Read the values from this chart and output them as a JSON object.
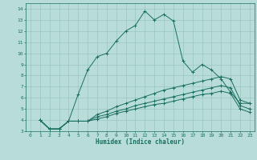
{
  "xlabel": "Humidex (Indice chaleur)",
  "bg_color": "#b8ddd8",
  "grid_color": "#90c0ba",
  "line_color": "#1a6e60",
  "xlim": [
    -0.5,
    23.5
  ],
  "ylim": [
    3,
    14.5
  ],
  "xticks": [
    0,
    1,
    2,
    3,
    4,
    5,
    6,
    7,
    8,
    9,
    10,
    11,
    12,
    13,
    14,
    15,
    16,
    17,
    18,
    19,
    20,
    21,
    22,
    23
  ],
  "yticks": [
    3,
    4,
    5,
    6,
    7,
    8,
    9,
    10,
    11,
    12,
    13,
    14
  ],
  "curves": [
    {
      "x": [
        1,
        2,
        3,
        4,
        5,
        6,
        7,
        8,
        9,
        10,
        11,
        12,
        13,
        14,
        15,
        16,
        17,
        18,
        19,
        20,
        21,
        22,
        23
      ],
      "y": [
        4.0,
        3.2,
        3.2,
        3.9,
        6.3,
        8.5,
        9.7,
        10.0,
        11.1,
        12.0,
        12.5,
        13.8,
        13.0,
        13.5,
        12.9,
        9.3,
        8.3,
        9.0,
        8.5,
        7.7,
        6.5,
        5.5,
        5.5
      ],
      "linestyle": "-"
    },
    {
      "x": [
        1,
        2,
        3,
        4,
        5,
        6,
        7,
        8,
        9,
        10,
        11,
        12,
        13,
        14,
        15,
        16,
        17,
        18,
        19,
        20,
        21,
        22,
        23
      ],
      "y": [
        4.0,
        3.2,
        3.2,
        3.9,
        3.9,
        3.9,
        4.5,
        4.8,
        5.2,
        5.5,
        5.8,
        6.1,
        6.4,
        6.7,
        6.9,
        7.1,
        7.3,
        7.5,
        7.7,
        7.9,
        7.7,
        5.8,
        5.5
      ],
      "linestyle": "-"
    },
    {
      "x": [
        1,
        2,
        3,
        4,
        5,
        6,
        7,
        8,
        9,
        10,
        11,
        12,
        13,
        14,
        15,
        16,
        17,
        18,
        19,
        20,
        21,
        22,
        23
      ],
      "y": [
        4.0,
        3.2,
        3.2,
        3.9,
        3.9,
        3.9,
        4.3,
        4.5,
        4.8,
        5.0,
        5.3,
        5.5,
        5.7,
        5.9,
        6.1,
        6.3,
        6.5,
        6.7,
        6.9,
        7.1,
        6.9,
        5.3,
        5.0
      ],
      "linestyle": "-"
    },
    {
      "x": [
        1,
        2,
        3,
        4,
        5,
        6,
        7,
        8,
        9,
        10,
        11,
        12,
        13,
        14,
        15,
        16,
        17,
        18,
        19,
        20,
        21,
        22,
        23
      ],
      "y": [
        4.0,
        3.2,
        3.2,
        3.9,
        3.9,
        3.9,
        4.1,
        4.3,
        4.6,
        4.8,
        5.0,
        5.2,
        5.4,
        5.5,
        5.7,
        5.9,
        6.1,
        6.3,
        6.4,
        6.6,
        6.4,
        5.0,
        4.7
      ],
      "linestyle": "-"
    }
  ]
}
